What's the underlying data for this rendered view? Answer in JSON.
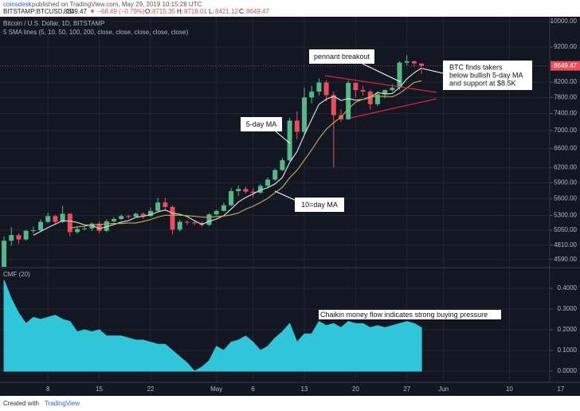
{
  "header": {
    "author": "coinsdesk",
    "published": "published on TradingView.com, May 29, 2019 10:15:28 UTC",
    "symbol": "BITSTAMP:BTCUSD, 1D",
    "change": "▼ −68.49 (−0.79%)",
    "ohlc_labels": [
      "O:",
      "H:",
      "L:",
      "C:"
    ]
  },
  "footer": {
    "text": "Created with",
    "brand": "TradingView"
  },
  "chart_data": [
    {
      "type": "candlestick",
      "title": "Bitcoin / U.S. Dollar, 1D, BITSTAMP",
      "subtitle": "5 SMA lines (5, 10, 50, 100, 200, close, close, close, close, close)",
      "annotations": [
        "pennant breakout",
        "5-day MA",
        "10=day MA"
      ],
      "note_lines": [
        "BTC finds takers",
        "below bullish 5-day MA",
        "and support at $8.5K"
      ],
      "up_color": "#53b987",
      "down_color": "#eb4d5c",
      "open": [
        4150,
        4880,
        4970,
        4900,
        5040,
        5050,
        5190,
        5290,
        5190,
        5330,
        5020,
        5070,
        5080,
        5160,
        5040,
        5200,
        5240,
        5290,
        5280,
        5330,
        5290,
        5380,
        5530,
        5450,
        5060,
        5190,
        5180,
        5170,
        5140,
        5320,
        5380,
        5480,
        5740,
        5780,
        5730,
        5710,
        5840,
        5960,
        6150,
        6350,
        7230,
        6970,
        7800,
        7950,
        8190,
        7860,
        7360,
        7260,
        8180,
        7990,
        7950,
        7630,
        7880,
        7990,
        8050,
        8740,
        8780,
        8715.35
      ],
      "high": [
        4950,
        5100,
        5000,
        5060,
        5110,
        5230,
        5350,
        5310,
        5470,
        5340,
        5100,
        5110,
        5180,
        5200,
        5230,
        5270,
        5320,
        5310,
        5350,
        5350,
        5440,
        5620,
        5620,
        5480,
        5230,
        5220,
        5210,
        5200,
        5340,
        5400,
        5530,
        5800,
        5850,
        5830,
        5800,
        5880,
        6000,
        6180,
        6400,
        7300,
        7450,
        8050,
        8100,
        8300,
        8250,
        7950,
        7500,
        8250,
        8200,
        8100,
        8000,
        7950,
        8000,
        8150,
        8780,
        8950,
        8800,
        8718.01
      ],
      "low": [
        4140,
        4800,
        4830,
        4880,
        5000,
        5030,
        5170,
        5150,
        5170,
        4950,
        4990,
        5050,
        5040,
        5000,
        5020,
        5180,
        5220,
        5240,
        5260,
        5240,
        5280,
        5360,
        5400,
        4980,
        5030,
        5140,
        5130,
        5110,
        5120,
        5300,
        5370,
        5460,
        5650,
        5700,
        5620,
        5690,
        5810,
        5940,
        6130,
        6330,
        6800,
        6900,
        7650,
        7850,
        7700,
        6200,
        7200,
        7250,
        7800,
        7850,
        7500,
        7580,
        7780,
        7950,
        8000,
        8660,
        8620,
        8421.12
      ],
      "close": [
        4880,
        4970,
        4900,
        5040,
        5050,
        5190,
        5290,
        5190,
        5330,
        5020,
        5070,
        5080,
        5160,
        5040,
        5200,
        5240,
        5290,
        5280,
        5330,
        5290,
        5380,
        5530,
        5450,
        5060,
        5190,
        5180,
        5170,
        5140,
        5320,
        5380,
        5480,
        5740,
        5780,
        5730,
        5710,
        5840,
        5960,
        6150,
        6350,
        7230,
        6970,
        7800,
        7950,
        8190,
        7860,
        7360,
        7260,
        8180,
        7990,
        7950,
        7630,
        7880,
        7990,
        8050,
        8740,
        8780,
        8720,
        8649.47
      ],
      "series": [
        {
          "color": "#d8d8d8",
          "values": [
            null,
            null,
            null,
            null,
            4968,
            5030,
            5094,
            5152,
            5210,
            5204,
            5180,
            5138,
            5132,
            5074,
            5110,
            5144,
            5186,
            5210,
            5268,
            5286,
            5314,
            5362,
            5396,
            5342,
            5322,
            5282,
            5210,
            5148,
            5200,
            5238,
            5298,
            5412,
            5540,
            5622,
            5688,
            5760,
            5804,
            5878,
            6002,
            6306,
            6532,
            6900,
            7260,
            7628,
            7754,
            7832,
            7724,
            7770,
            7730,
            7748,
            7802,
            7926,
            7888,
            7900,
            8058,
            8288,
            8456,
            8588
          ]
        },
        {
          "color": "#b9a64a",
          "values": [
            null,
            null,
            null,
            null,
            null,
            null,
            null,
            null,
            null,
            5086,
            5105,
            5116,
            5142,
            5142,
            5157,
            5162,
            5162,
            5171,
            5171,
            5198,
            5229,
            5274,
            5303,
            5305,
            5304,
            5298,
            5286,
            5272,
            5271,
            5280,
            5290,
            5311,
            5344,
            5411,
            5463,
            5529,
            5608,
            5709,
            5812,
            5997,
            6146,
            6352,
            6569,
            6815,
            7030,
            7182,
            7312,
            7515,
            7679,
            7751,
            7817,
            7825,
            7829,
            7815,
            7903,
            8045,
            8191,
            8238
          ]
        }
      ],
      "log_scale": true,
      "grid": true,
      "xlim": [
        -0.55,
        74.5
      ],
      "ylim": [
        4480,
        10158
      ],
      "yticks": [
        {
          "value": 10000,
          "label": "10000.00"
        },
        {
          "value": 9200,
          "label": "9200.00"
        },
        {
          "value": 8200,
          "label": "8200.00"
        },
        {
          "value": 7800,
          "label": "7800.00"
        },
        {
          "value": 7400,
          "label": "7400.00"
        },
        {
          "value": 7000,
          "label": "7000.00"
        },
        {
          "value": 6600,
          "label": "6600.00"
        },
        {
          "value": 6200,
          "label": "6200.00"
        },
        {
          "value": 5900,
          "label": "5900.00"
        },
        {
          "value": 5600,
          "label": "5600.00"
        },
        {
          "value": 5300,
          "label": "5300.00"
        },
        {
          "value": 5050,
          "label": "5050.00"
        },
        {
          "value": 4810,
          "label": "4810.00"
        },
        {
          "value": 4590,
          "label": "4590.00"
        }
      ]
    },
    {
      "type": "area",
      "title": "CMF (20)",
      "annotation": "Chaikin money flow indicates strong buying pressure",
      "color": "#2fc6d9",
      "values": [
        0.44,
        0.35,
        0.28,
        0.23,
        0.26,
        0.25,
        0.26,
        0.27,
        0.25,
        0.24,
        0.19,
        0.2,
        0.19,
        0.2,
        0.17,
        0.17,
        0.17,
        0.16,
        0.15,
        0.15,
        0.14,
        0.13,
        0.13,
        0.1,
        0.07,
        0.04,
        0,
        0.02,
        0.05,
        0.12,
        0.1,
        0.14,
        0.15,
        0.17,
        0.14,
        0.1,
        0.12,
        0.16,
        0.19,
        0.23,
        0.14,
        0.18,
        0.18,
        0.24,
        0.22,
        0.23,
        0.21,
        0.24,
        0.23,
        0.23,
        0.21,
        0.22,
        0.21,
        0.22,
        0.23,
        0.24,
        0.23,
        0.21
      ],
      "grid": true,
      "xlim": [
        -0.55,
        74.5
      ],
      "ylim": [
        -0.046,
        0.496
      ],
      "yticks": [
        {
          "value": 0.4,
          "label": "0.4000"
        },
        {
          "value": 0.3,
          "label": "0.3000"
        },
        {
          "value": 0.2,
          "label": "0.2000"
        },
        {
          "value": 0.1,
          "label": "0.1000"
        },
        {
          "value": 0,
          "label": "0.0000"
        }
      ],
      "xticks": [
        {
          "value": 6,
          "label": "8"
        },
        {
          "value": 13,
          "label": "15"
        },
        {
          "value": 20,
          "label": "22"
        },
        {
          "value": 29,
          "label": "May"
        },
        {
          "value": 34,
          "label": "6"
        },
        {
          "value": 41,
          "label": "13"
        },
        {
          "value": 48,
          "label": "20"
        },
        {
          "value": 55,
          "label": "27"
        },
        {
          "value": 60,
          "label": "Jun"
        },
        {
          "value": 69,
          "label": "10"
        },
        {
          "value": 76,
          "label": "17"
        }
      ]
    }
  ]
}
